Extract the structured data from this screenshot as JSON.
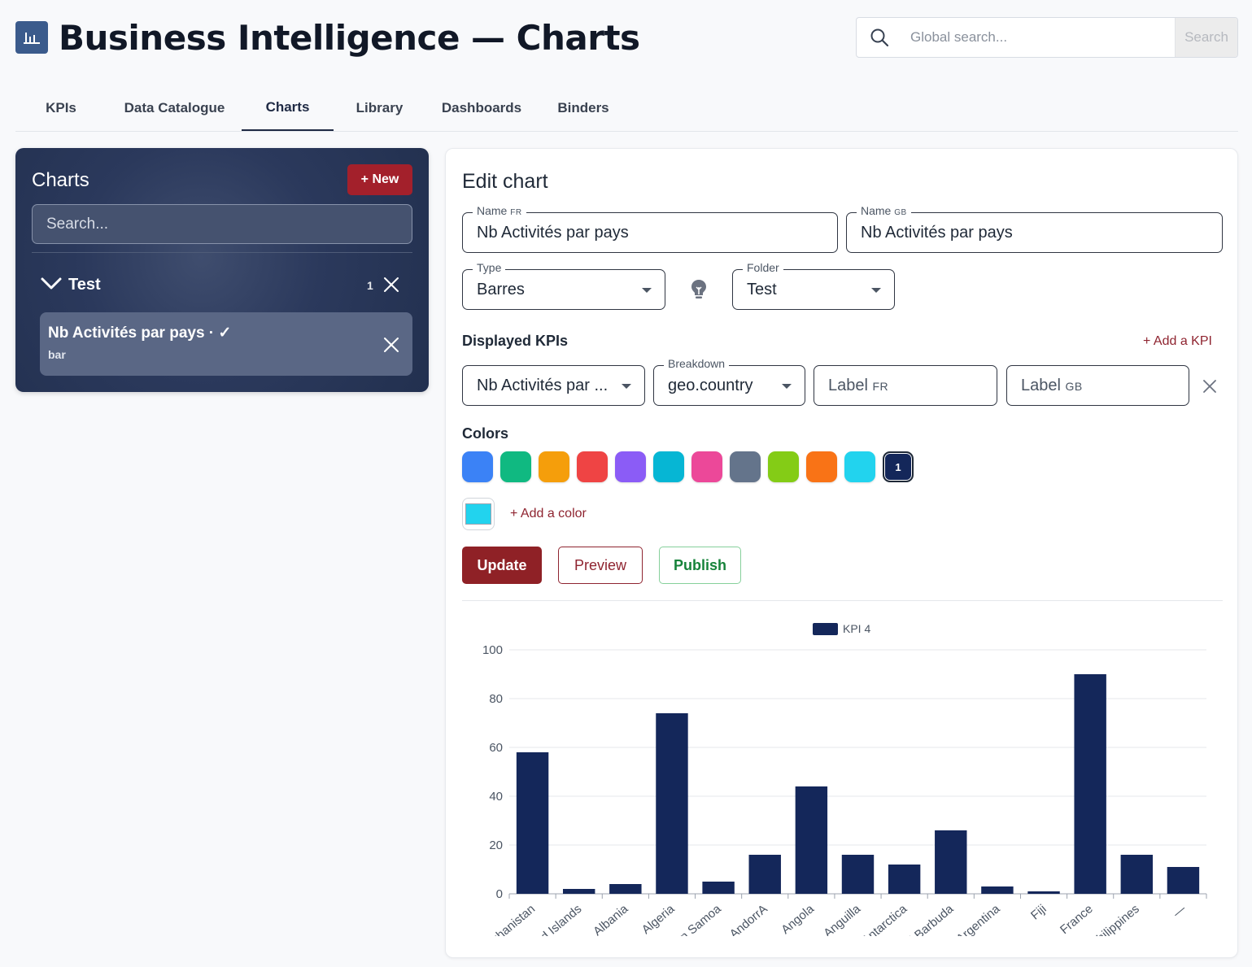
{
  "header": {
    "title": "Business Intelligence — Charts",
    "search_placeholder": "Global search...",
    "search_button": "Search"
  },
  "tabs": [
    {
      "label": "KPIs",
      "active": false
    },
    {
      "label": "Data Catalogue",
      "active": false
    },
    {
      "label": "Charts",
      "active": true
    },
    {
      "label": "Library",
      "active": false
    },
    {
      "label": "Dashboards",
      "active": false
    },
    {
      "label": "Binders",
      "active": false
    }
  ],
  "sidebar": {
    "title": "Charts",
    "new_button": "+ New",
    "search_placeholder": "Search...",
    "folder": {
      "name": "Test",
      "count": "1"
    },
    "item": {
      "title": "Nb Activités par pays · ✓",
      "subtitle": "bar"
    }
  },
  "editor": {
    "title": "Edit chart",
    "name_fr": {
      "label": "Name",
      "lang": "FR",
      "value": "Nb Activités par pays"
    },
    "name_gb": {
      "label": "Name",
      "lang": "GB",
      "value": "Nb Activités par pays"
    },
    "type": {
      "label": "Type",
      "value": "Barres"
    },
    "folder": {
      "label": "Folder",
      "value": "Test"
    },
    "displayed_kpis_label": "Displayed KPIs",
    "add_kpi": "+ Add a KPI",
    "kpi_select": "Nb Activités par ...",
    "breakdown": {
      "label": "Breakdown",
      "value": "geo.country"
    },
    "label_fr": {
      "placeholder": "Label",
      "lang": "FR"
    },
    "label_gb": {
      "placeholder": "Label",
      "lang": "GB"
    },
    "colors_label": "Colors",
    "palette": [
      "#3b82f6",
      "#10b981",
      "#f59e0b",
      "#ef4444",
      "#8b5cf6",
      "#06b6d4",
      "#ec4899",
      "#64748b",
      "#84cc16",
      "#f97316",
      "#22d3ee",
      "#14275a"
    ],
    "selected_swatch_badge": "1",
    "custom_color": "#22d3ee",
    "add_color": "+ Add a color",
    "buttons": {
      "update": "Update",
      "preview": "Preview",
      "publish": "Publish"
    }
  },
  "chart_data": {
    "type": "bar",
    "series": [
      {
        "name": "KPI 4",
        "color": "#14275a",
        "values": [
          58,
          2,
          4,
          74,
          5,
          16,
          44,
          16,
          12,
          26,
          3,
          1,
          90,
          16,
          11
        ]
      }
    ],
    "categories": [
      "Afghanistan",
      "Åland Islands",
      "Albania",
      "Algeria",
      "American Samoa",
      "AndorrA",
      "Angola",
      "Anguilla",
      "Antarctica",
      "Antigua and Barbuda",
      "Argentina",
      "Fiji",
      "France",
      "Philippines",
      "—"
    ],
    "yticks": [
      0,
      20,
      40,
      60,
      80,
      100
    ],
    "ylim": [
      0,
      100
    ],
    "grid": true,
    "legend": "top-center"
  }
}
